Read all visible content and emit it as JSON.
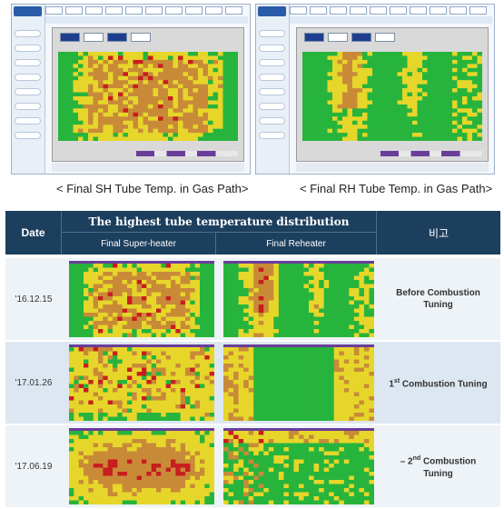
{
  "captions": {
    "left": "< Final SH Tube Temp. in Gas Path>",
    "right": "< Final RH Tube Temp. in Gas Path>"
  },
  "table": {
    "header_date": "Date",
    "header_title": "The highest tube temperature distribution",
    "header_sh": "Final Super-heater",
    "header_rh": "Final Reheater",
    "header_remark": "비고",
    "rows": [
      {
        "date": "'16.12.15",
        "remark_main": "Before Combustion",
        "remark_sub": "Tuning",
        "remark_prefix": "",
        "remark_sup": ""
      },
      {
        "date": "'17.01.26",
        "remark_main": "1",
        "remark_sup": "st",
        "remark_rest": " Combustion Tuning"
      },
      {
        "date": "'17.06.19",
        "remark_prefix": "–  2",
        "remark_sup": "nd",
        "remark_rest": " Combustion",
        "remark_sub": "Tuning"
      }
    ]
  },
  "colors": {
    "cool": "#27b43c",
    "warm": "#e6d62a",
    "hot": "#c98a38",
    "hottest": "#c81e1e",
    "header": "#1d3f5e"
  }
}
